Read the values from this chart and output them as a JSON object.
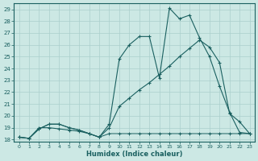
{
  "xlabel": "Humidex (Indice chaleur)",
  "bg_color": "#cce8e4",
  "grid_color": "#aacfcc",
  "line_color": "#1a6060",
  "xlim_min": -0.5,
  "xlim_max": 23.5,
  "ylim_min": 17.8,
  "ylim_max": 29.5,
  "yticks": [
    18,
    19,
    20,
    21,
    22,
    23,
    24,
    25,
    26,
    27,
    28,
    29
  ],
  "xticks": [
    0,
    1,
    2,
    3,
    4,
    5,
    6,
    7,
    8,
    9,
    10,
    11,
    12,
    13,
    14,
    15,
    16,
    17,
    18,
    19,
    20,
    21,
    22,
    23
  ],
  "line1_x": [
    0,
    1,
    2,
    3,
    4,
    5,
    6,
    7,
    8,
    9,
    10,
    11,
    12,
    13,
    14,
    15,
    16,
    17,
    18,
    19,
    20,
    21,
    22,
    23
  ],
  "line1_y": [
    18.2,
    18.1,
    19.0,
    19.0,
    18.9,
    18.8,
    18.7,
    18.5,
    18.2,
    19.3,
    24.8,
    26.0,
    26.7,
    26.7,
    23.2,
    29.1,
    28.2,
    28.5,
    26.6,
    25.0,
    22.5,
    20.3,
    18.6,
    18.5
  ],
  "line2_x": [
    0,
    1,
    2,
    3,
    4,
    5,
    6,
    7,
    8,
    9,
    10,
    11,
    12,
    13,
    14,
    15,
    16,
    17,
    18,
    19,
    20,
    21,
    22,
    23
  ],
  "line2_y": [
    18.2,
    18.1,
    18.9,
    19.3,
    19.3,
    19.0,
    18.8,
    18.5,
    18.2,
    19.0,
    20.8,
    21.5,
    22.2,
    22.8,
    23.5,
    24.2,
    25.0,
    25.7,
    26.4,
    25.8,
    24.5,
    20.2,
    19.5,
    18.5
  ],
  "line3_x": [
    0,
    1,
    2,
    3,
    4,
    5,
    6,
    7,
    8,
    9,
    10,
    11,
    12,
    13,
    14,
    15,
    16,
    17,
    18,
    19,
    20,
    21,
    22,
    23
  ],
  "line3_y": [
    18.2,
    18.1,
    18.9,
    19.3,
    19.3,
    19.0,
    18.8,
    18.5,
    18.2,
    18.5,
    18.5,
    18.5,
    18.5,
    18.5,
    18.5,
    18.5,
    18.5,
    18.5,
    18.5,
    18.5,
    18.5,
    18.5,
    18.5,
    18.5
  ]
}
